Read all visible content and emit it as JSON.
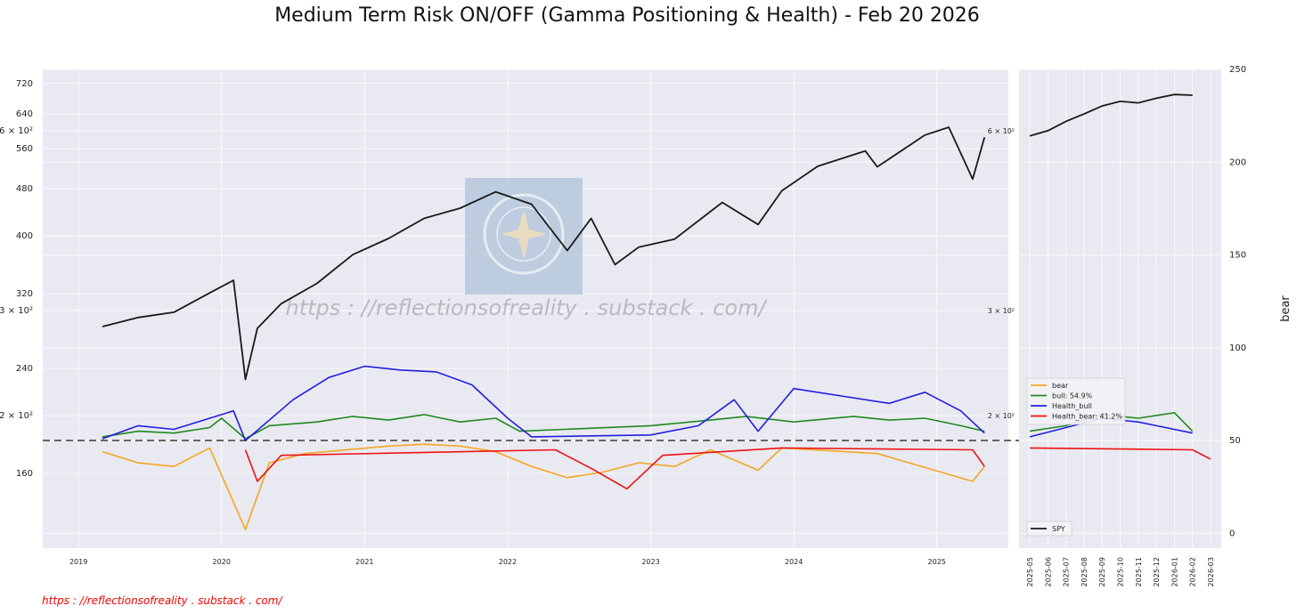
{
  "title": "Medium Term Risk ON/OFF (Gamma Positioning & Health)  - Feb 20 2026",
  "watermark": "https : //reflectionsofreality . substack . com/",
  "footer_link": "https : //reflectionsofreality . substack . com/",
  "colors": {
    "panel_bg": "#e9e9f1",
    "grid": "#ffffff",
    "spy": "#1a1a1a",
    "bear": "#f5a623",
    "bull": "#1e8a1e",
    "health_bull": "#1f1fe0",
    "health_bear": "#ee1111",
    "threshold": "#666666",
    "footer": "#ff0000"
  },
  "chart_data": [
    {
      "type": "line",
      "panel": "main",
      "y_scale": "log",
      "ylim": [
        120,
        760
      ],
      "xlim": [
        "2018-10",
        "2025-07"
      ],
      "x_tick_labels": [
        "2019",
        "2020",
        "2021",
        "2022",
        "2023",
        "2024",
        "2025"
      ],
      "y_tick_labels": [
        "720",
        "640",
        "6 × 10²",
        "560",
        "480",
        "400",
        "320",
        "3 × 10²",
        "240",
        "2 × 10²",
        "160"
      ],
      "grid": true,
      "threshold_line": 50,
      "series": [
        {
          "name": "SPY",
          "values": [
            [
              "2019-03",
              282
            ],
            [
              "2019-06",
              292
            ],
            [
              "2019-09",
              298
            ],
            [
              "2019-12",
              321
            ],
            [
              "2020-02",
              337
            ],
            [
              "2020-03",
              230
            ],
            [
              "2020-04",
              280
            ],
            [
              "2020-06",
              308
            ],
            [
              "2020-09",
              333
            ],
            [
              "2020-12",
              372
            ],
            [
              "2021-03",
              396
            ],
            [
              "2021-06",
              428
            ],
            [
              "2021-09",
              445
            ],
            [
              "2021-12",
              474
            ],
            [
              "2022-03",
              452
            ],
            [
              "2022-06",
              378
            ],
            [
              "2022-08",
              428
            ],
            [
              "2022-10",
              358
            ],
            [
              "2022-12",
              383
            ],
            [
              "2023-03",
              395
            ],
            [
              "2023-07",
              455
            ],
            [
              "2023-10",
              418
            ],
            [
              "2023-12",
              476
            ],
            [
              "2024-03",
              523
            ],
            [
              "2024-07",
              555
            ],
            [
              "2024-08",
              522
            ],
            [
              "2024-12",
              590
            ],
            [
              "2025-02",
              608
            ],
            [
              "2025-04",
              498
            ],
            [
              "2025-05",
              585
            ]
          ]
        },
        {
          "name": "bear",
          "values": [
            [
              "2019-03",
              44
            ],
            [
              "2019-06",
              38
            ],
            [
              "2019-09",
              36
            ],
            [
              "2019-12",
              46
            ],
            [
              "2020-03",
              2
            ],
            [
              "2020-05",
              38
            ],
            [
              "2020-08",
              43
            ],
            [
              "2021-03",
              47
            ],
            [
              "2021-06",
              48
            ],
            [
              "2021-09",
              47
            ],
            [
              "2021-12",
              44
            ],
            [
              "2022-03",
              36
            ],
            [
              "2022-06",
              30
            ],
            [
              "2022-09",
              33
            ],
            [
              "2022-12",
              38
            ],
            [
              "2023-03",
              36
            ],
            [
              "2023-06",
              45
            ],
            [
              "2023-10",
              34
            ],
            [
              "2023-12",
              46
            ],
            [
              "2024-08",
              43
            ],
            [
              "2025-04",
              28
            ],
            [
              "2025-05",
              36
            ]
          ]
        },
        {
          "name": "bull: 54.9%",
          "values": [
            [
              "2019-03",
              52
            ],
            [
              "2019-06",
              55
            ],
            [
              "2019-09",
              54
            ],
            [
              "2019-12",
              57
            ],
            [
              "2020-01",
              62
            ],
            [
              "2020-03",
              51
            ],
            [
              "2020-05",
              58
            ],
            [
              "2020-09",
              60
            ],
            [
              "2020-12",
              63
            ],
            [
              "2021-03",
              61
            ],
            [
              "2021-06",
              64
            ],
            [
              "2021-09",
              60
            ],
            [
              "2021-12",
              62
            ],
            [
              "2022-02",
              55
            ],
            [
              "2023-01",
              58
            ],
            [
              "2023-06",
              61
            ],
            [
              "2023-09",
              63
            ],
            [
              "2024-01",
              60
            ],
            [
              "2024-06",
              63
            ],
            [
              "2024-09",
              61
            ],
            [
              "2024-12",
              62
            ],
            [
              "2025-03",
              58
            ],
            [
              "2025-05",
              55
            ]
          ]
        },
        {
          "name": "Health_bull",
          "values": [
            [
              "2019-03",
              51
            ],
            [
              "2019-06",
              58
            ],
            [
              "2019-09",
              56
            ],
            [
              "2019-12",
              62
            ],
            [
              "2020-02",
              66
            ],
            [
              "2020-03",
              50
            ],
            [
              "2020-07",
              72
            ],
            [
              "2020-10",
              84
            ],
            [
              "2021-01",
              90
            ],
            [
              "2021-04",
              88
            ],
            [
              "2021-07",
              87
            ],
            [
              "2021-10",
              80
            ],
            [
              "2022-01",
              62
            ],
            [
              "2022-03",
              52
            ],
            [
              "2023-01",
              53
            ],
            [
              "2023-05",
              58
            ],
            [
              "2023-08",
              72
            ],
            [
              "2023-10",
              55
            ],
            [
              "2024-01",
              78
            ],
            [
              "2024-05",
              74
            ],
            [
              "2024-09",
              70
            ],
            [
              "2024-12",
              76
            ],
            [
              "2025-03",
              66
            ],
            [
              "2025-05",
              54
            ]
          ]
        },
        {
          "name": "Health_bear: 41.2%",
          "values": [
            [
              "2020-03",
              45
            ],
            [
              "2020-04",
              28
            ],
            [
              "2020-06",
              42
            ],
            [
              "2022-05",
              45
            ],
            [
              "2022-08",
              35
            ],
            [
              "2022-11",
              24
            ],
            [
              "2023-02",
              42
            ],
            [
              "2023-12",
              46
            ],
            [
              "2025-04",
              45
            ],
            [
              "2025-05",
              36
            ]
          ]
        }
      ]
    },
    {
      "type": "line",
      "panel": "recent",
      "ylabel": "bear",
      "ylim": [
        -8,
        250
      ],
      "y_tick_labels": [
        "250",
        "200",
        "150",
        "100",
        "50",
        "0"
      ],
      "y_left_tick_labels": [
        "6 × 10²",
        "3 × 10²",
        "2 × 10²"
      ],
      "x_tick_labels": [
        "2025-05",
        "2025-06",
        "2025-07",
        "2025-08",
        "2025-09",
        "2025-10",
        "2025-11",
        "2025-12",
        "2026-01",
        "2026-02",
        "2026-03"
      ],
      "legend": {
        "placement": "center-left",
        "entries": [
          "bear",
          "bull: 54.9%",
          "Health_bull",
          "Health_bear: 41.2%"
        ]
      },
      "legend2": {
        "placement": "lower-left",
        "entries": [
          "SPY"
        ]
      },
      "series": [
        {
          "name": "SPY",
          "values": [
            [
              "2025-05",
              588
            ],
            [
              "2025-06",
              600
            ],
            [
              "2025-07",
              622
            ],
            [
              "2025-08",
              640
            ],
            [
              "2025-09",
              660
            ],
            [
              "2025-10",
              672
            ],
            [
              "2025-11",
              668
            ],
            [
              "2025-12",
              680
            ],
            [
              "2026-01",
              690
            ],
            [
              "2026-02",
              688
            ]
          ]
        },
        {
          "name": "Health_bull",
          "values": [
            [
              "2025-05",
              52
            ],
            [
              "2025-07",
              57
            ],
            [
              "2025-09",
              62
            ],
            [
              "2025-11",
              60
            ],
            [
              "2025-12",
              58
            ],
            [
              "2026-02",
              54
            ]
          ]
        },
        {
          "name": "bull: 54.9%",
          "values": [
            [
              "2025-05",
              55
            ],
            [
              "2025-07",
              58
            ],
            [
              "2025-09",
              64
            ],
            [
              "2025-11",
              62
            ],
            [
              "2026-01",
              65
            ],
            [
              "2026-02",
              55
            ]
          ]
        },
        {
          "name": "Health_bear: 41.2%",
          "values": [
            [
              "2025-05",
              46
            ],
            [
              "2026-02",
              45
            ],
            [
              "2026-03",
              40
            ]
          ]
        }
      ]
    }
  ]
}
